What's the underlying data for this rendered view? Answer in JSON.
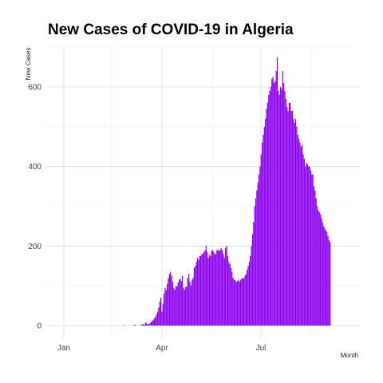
{
  "chart_data": {
    "type": "bar",
    "title": "New Cases of COVID-19 in Algeria",
    "xlabel": "Month",
    "ylabel": "New Cases",
    "x_tick_labels": [
      "Jan",
      "Apr",
      "Jul"
    ],
    "y_tick_labels": [
      "0",
      "200",
      "400",
      "600"
    ],
    "y_ticks": [
      0,
      200,
      400,
      600
    ],
    "ylim": [
      -30,
      700
    ],
    "grid": true,
    "bar_color": "#8B00EE",
    "x_start": "2020-01-01",
    "x_end": "2020-09-30",
    "series": [
      {
        "values": [
          [
            0,
            0,
            0,
            0,
            0,
            0,
            0,
            0,
            0,
            0,
            0,
            0,
            0,
            0,
            0,
            0,
            0,
            0,
            0,
            0,
            0,
            0,
            0,
            0,
            0,
            0,
            0,
            0,
            0,
            0,
            0
          ],
          [
            0,
            0,
            0,
            0,
            0,
            0,
            0,
            0,
            0,
            0,
            0,
            0,
            0,
            0,
            0,
            0,
            0,
            0,
            0,
            0,
            0,
            0,
            0,
            0,
            0,
            1,
            0,
            0,
            0
          ],
          [
            0,
            0,
            0,
            0,
            0,
            1,
            2,
            0,
            0,
            0,
            0,
            2,
            0,
            3,
            4,
            2,
            8,
            5,
            4,
            3,
            6,
            8,
            12,
            15,
            18,
            22,
            28,
            35,
            45,
            60,
            70
          ],
          [
            35,
            55,
            80,
            95,
            88,
            105,
            120,
            130,
            135,
            125,
            110,
            95,
            90,
            100,
            98,
            108,
            115,
            118,
            112,
            125,
            95,
            90,
            97,
            98,
            120,
            130,
            110,
            100,
            115,
            120
          ],
          [
            145,
            150,
            160,
            170,
            165,
            175,
            175,
            180,
            180,
            185,
            190,
            200,
            185,
            170,
            178,
            175,
            188,
            190,
            185,
            180,
            180,
            190,
            190,
            188,
            190,
            195,
            190,
            180,
            170,
            195,
            200
          ],
          [
            175,
            160,
            155,
            145,
            135,
            120,
            115,
            114,
            110,
            112,
            115,
            110,
            115,
            118,
            120,
            118,
            125,
            130,
            140,
            150,
            160,
            175,
            200,
            230,
            260,
            300,
            320,
            340,
            360,
            380
          ],
          [
            400,
            430,
            460,
            480,
            500,
            520,
            545,
            560,
            580,
            590,
            600,
            620,
            625,
            610,
            615,
            640,
            675,
            590,
            580,
            600,
            595,
            640,
            610,
            590,
            570,
            550,
            540,
            560,
            560,
            540,
            540
          ],
          [
            520,
            510,
            520,
            500,
            480,
            470,
            460,
            450,
            455,
            430,
            420,
            400,
            410,
            405,
            400,
            400,
            390,
            380,
            380,
            350,
            340,
            320,
            300,
            290,
            285,
            280,
            270,
            260,
            250,
            245,
            240
          ],
          [
            235,
            225,
            215,
            210
          ]
        ]
      }
    ]
  }
}
